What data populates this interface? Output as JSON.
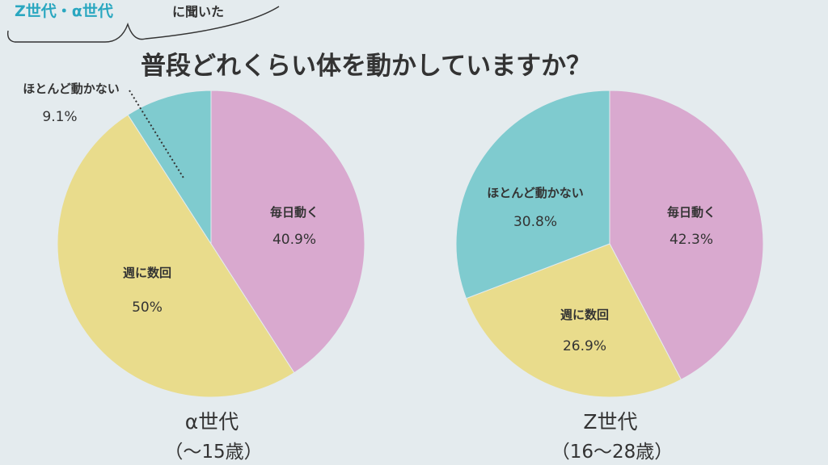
{
  "header": {
    "tag_highlight": "Z世代・α世代",
    "tag_rest": "に聞いた",
    "title": "普段どれくらい体を動かしていますか？"
  },
  "colors": {
    "background": "#e4ebee",
    "accent": "#2aa7c0",
    "pink": "#d9a9cf",
    "yellow": "#e9dc8c",
    "teal": "#7fcbcf",
    "text": "#333333"
  },
  "chart_data": [
    {
      "type": "pie",
      "group_label": "α世代",
      "group_sub": "（〜15歳）",
      "slices": [
        {
          "label": "毎日動く",
          "value_label": "40.9%",
          "value": 40.9,
          "color": "#d9a9cf"
        },
        {
          "label": "週に数回",
          "value_label": "50%",
          "value": 50,
          "color": "#e9dc8c"
        },
        {
          "label": "ほとんど動かない",
          "value_label": "9.1%",
          "value": 9.1,
          "color": "#7fcbcf"
        }
      ]
    },
    {
      "type": "pie",
      "group_label": "Z世代",
      "group_sub": "（16〜28歳）",
      "slices": [
        {
          "label": "毎日動く",
          "value_label": "42.3%",
          "value": 42.3,
          "color": "#d9a9cf"
        },
        {
          "label": "週に数回",
          "value_label": "26.9%",
          "value": 26.9,
          "color": "#e9dc8c"
        },
        {
          "label": "ほとんど動かない",
          "value_label": "30.8%",
          "value": 30.8,
          "color": "#7fcbcf"
        }
      ]
    }
  ]
}
